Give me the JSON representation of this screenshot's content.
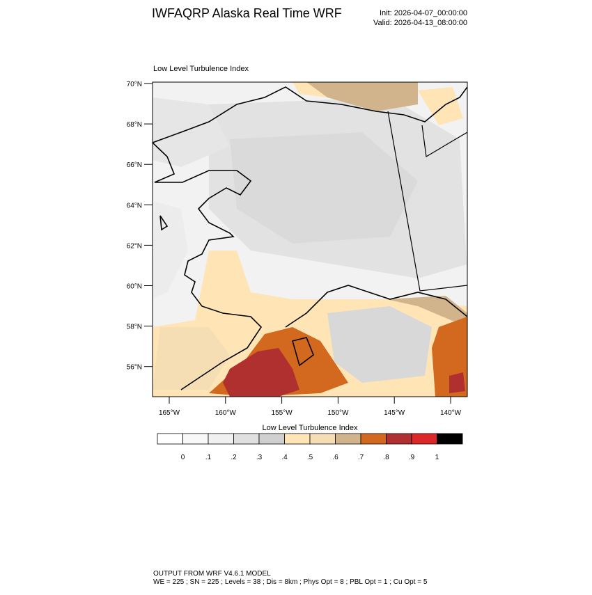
{
  "header": {
    "title": "IWFAQRP Alaska Real Time WRF",
    "init": "Init: 2026-04-07_00:00:00",
    "valid": "Valid: 2026-04-13_08:00:00"
  },
  "map": {
    "title": "Low Level Turbulence Index",
    "lat_labels": [
      "70°N",
      "68°N",
      "66°N",
      "64°N",
      "62°N",
      "60°N",
      "58°N",
      "56°N"
    ],
    "lon_labels": [
      "165°W",
      "160°W",
      "155°W",
      "150°W",
      "145°W",
      "140°W"
    ]
  },
  "colorbar": {
    "title": "Low Level Turbulence Index",
    "labels": [
      "0",
      ".1",
      ".2",
      ".3",
      ".4",
      ".5",
      ".6",
      ".7",
      ".8",
      ".9",
      "1"
    ],
    "colors": [
      "#ffffff",
      "#f8f8f8",
      "#f0f0f0",
      "#e0e0e0",
      "#d0d0d0",
      "#ffe4b5",
      "#f5deb3",
      "#d2b48c",
      "#d2691e",
      "#b03030",
      "#dc2828",
      "#000000"
    ]
  },
  "footer": {
    "line1": "OUTPUT FROM WRF V4.6.1 MODEL",
    "line2": "WE = 225 ; SN = 225 ; Levels = 38 ; Dis = 8km ; Phys Opt = 8 ; PBL Opt = 1 ; Cu Opt = 5"
  }
}
